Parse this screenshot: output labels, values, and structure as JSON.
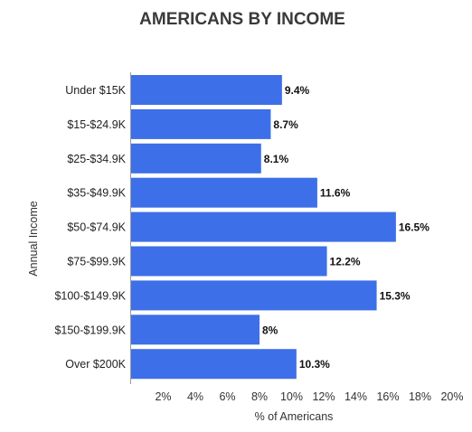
{
  "chart_data": {
    "type": "bar",
    "orientation": "horizontal",
    "title": "AMERICANS BY INCOME",
    "xlabel": "% of Americans",
    "ylabel": "Annual Income",
    "categories": [
      "Under $15K",
      "$15-$24.9K",
      "$25-$34.9K",
      "$35-$49.9K",
      "$50-$74.9K",
      "$75-$99.9K",
      "$100-$149.9K",
      "$150-$199.9K",
      "Over $200K"
    ],
    "values": [
      9.4,
      8.7,
      8.1,
      11.6,
      16.5,
      12.2,
      15.3,
      8,
      10.3
    ],
    "value_labels": [
      "9.4%",
      "8.7%",
      "8.1%",
      "11.6%",
      "16.5%",
      "12.2%",
      "15.3%",
      "8%",
      "10.3%"
    ],
    "xticks": [
      "2%",
      "4%",
      "6%",
      "8%",
      "10%",
      "12%",
      "14%",
      "16%",
      "18%",
      "20%"
    ],
    "xlim": [
      0,
      20
    ],
    "bar_color": "#3d6fe8",
    "grid": false,
    "legend": "none"
  }
}
